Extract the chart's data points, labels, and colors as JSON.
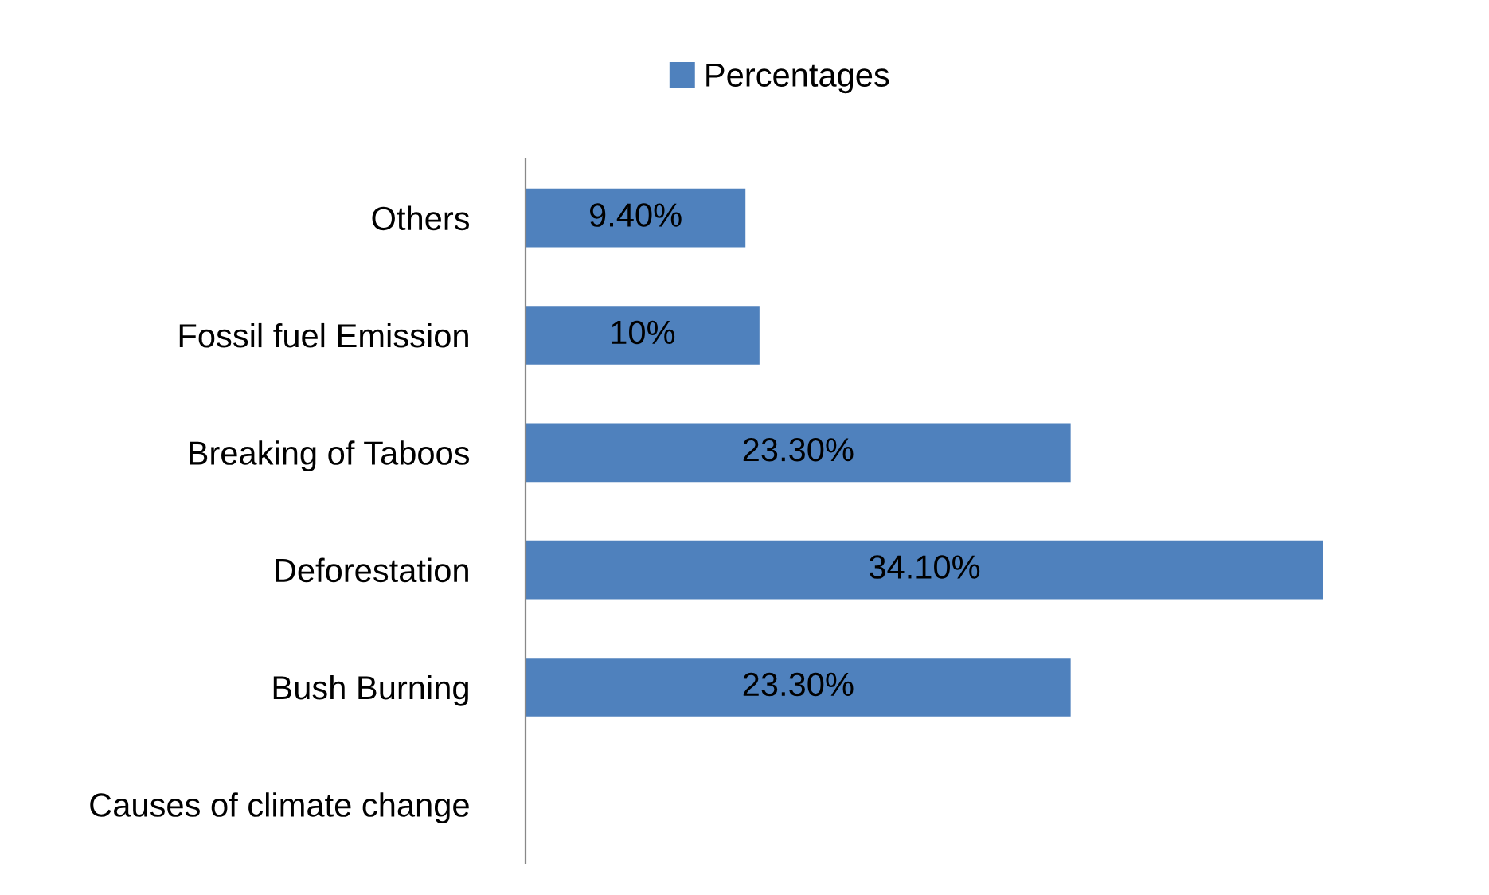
{
  "chart_data": {
    "type": "bar",
    "orientation": "horizontal",
    "categories": [
      "Others",
      "Fossil fuel Emission",
      "Breaking of Taboos",
      "Deforestation",
      "Bush Burning",
      "Causes of climate change"
    ],
    "series": [
      {
        "name": "Percentages",
        "color": "#4f81bd",
        "values": [
          9.4,
          10,
          23.3,
          34.1,
          23.3,
          null
        ],
        "value_labels": [
          "9.40%",
          "10%",
          "23.30%",
          "34.10%",
          "23.30%",
          null
        ]
      }
    ],
    "legend": "top",
    "grid": false,
    "tick_labels": "y"
  }
}
